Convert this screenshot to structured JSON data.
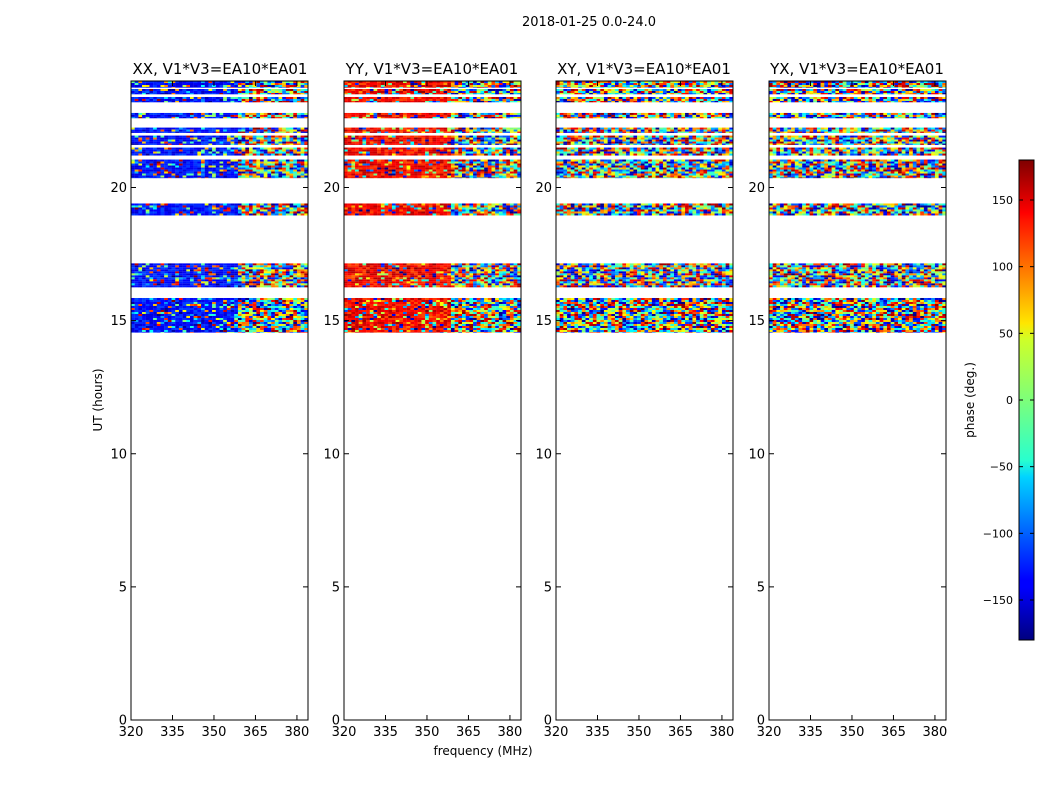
{
  "chart_data": {
    "type": "heatmap",
    "suptitle": "2018-01-25 0.0-24.0",
    "xlabel": "frequency (MHz)",
    "ylabel": "UT (hours)",
    "xlim": [
      320,
      384
    ],
    "ylim": [
      0,
      24
    ],
    "xticks": [
      320,
      335,
      350,
      365,
      380
    ],
    "yticks": [
      0,
      5,
      10,
      15,
      20
    ],
    "panels": [
      {
        "title": "XX, V1*V3=EA10*EA01",
        "mode": "XX"
      },
      {
        "title": "YY, V1*V3=EA10*EA01",
        "mode": "YY"
      },
      {
        "title": "XY, V1*V3=EA10*EA01",
        "mode": "XY"
      },
      {
        "title": "YX, V1*V3=EA10*EA01",
        "mode": "YX"
      }
    ],
    "data_bands_ut_hours": [
      [
        14.55,
        15.85
      ],
      [
        16.25,
        17.15
      ],
      [
        18.95,
        19.4
      ],
      [
        20.35,
        21.05
      ],
      [
        21.2,
        21.5
      ],
      [
        21.6,
        21.95
      ],
      [
        22.05,
        22.25
      ],
      [
        22.6,
        22.8
      ],
      [
        23.2,
        23.4
      ],
      [
        23.5,
        23.7
      ],
      [
        23.75,
        24.0
      ]
    ],
    "colorbar": {
      "label": "phase (deg.)",
      "range": [
        -180,
        180
      ],
      "ticks": [
        150,
        100,
        50,
        0,
        -50,
        -100,
        -150
      ],
      "tick_labels": [
        "150",
        "100",
        "50",
        "0",
        "−50",
        "−100",
        "−150"
      ],
      "colormap": "jet"
    }
  },
  "colors": {
    "axes": "#000000",
    "background": "#ffffff"
  }
}
